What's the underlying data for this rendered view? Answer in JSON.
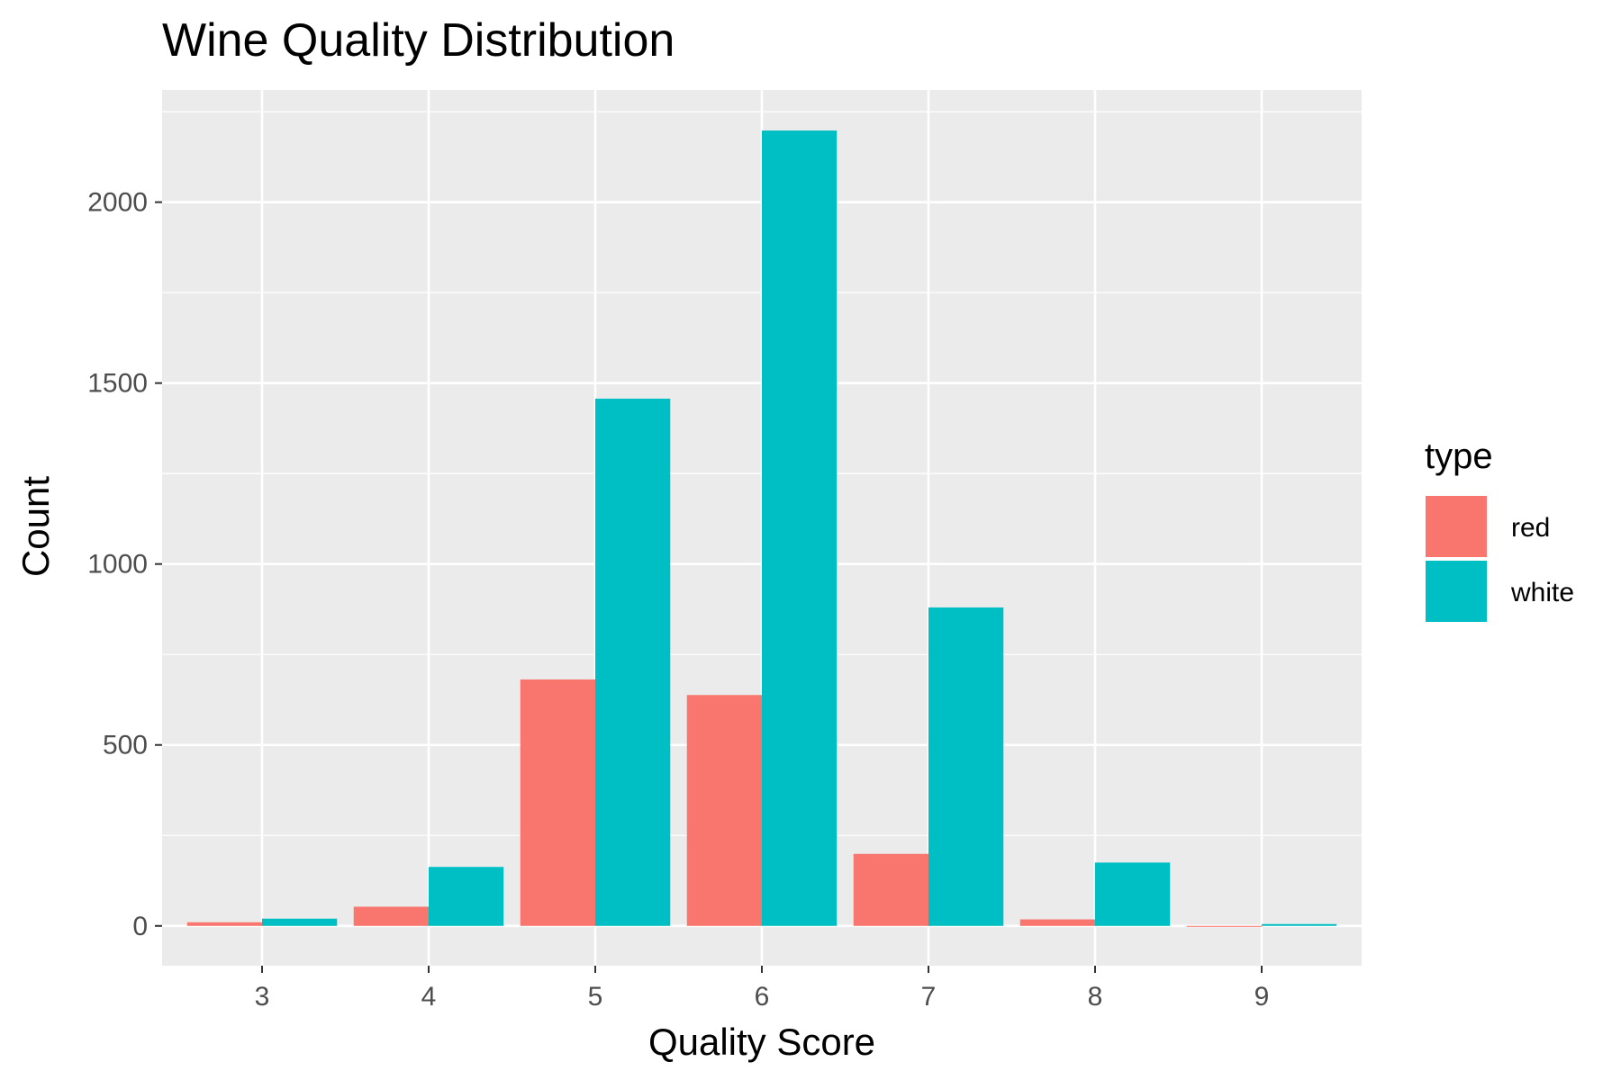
{
  "chart_data": {
    "type": "bar",
    "title": "Wine Quality Distribution",
    "xlabel": "Quality Score",
    "ylabel": "Count",
    "categories": [
      "3",
      "4",
      "5",
      "6",
      "7",
      "8",
      "9"
    ],
    "series": [
      {
        "name": "red",
        "values": [
          10,
          53,
          681,
          638,
          199,
          18,
          0
        ],
        "color": "#F8766D"
      },
      {
        "name": "white",
        "values": [
          20,
          163,
          1457,
          2198,
          880,
          175,
          5
        ],
        "color": "#00BFC4"
      }
    ],
    "y_ticks": [
      "0",
      "500",
      "1000",
      "1500",
      "2000"
    ],
    "ylim": [
      -110,
      2310
    ],
    "legend": {
      "title": "type",
      "placement": "right"
    },
    "grid": true,
    "panel_color": "#EBEBEB",
    "grid_color": "#FFFFFF"
  }
}
